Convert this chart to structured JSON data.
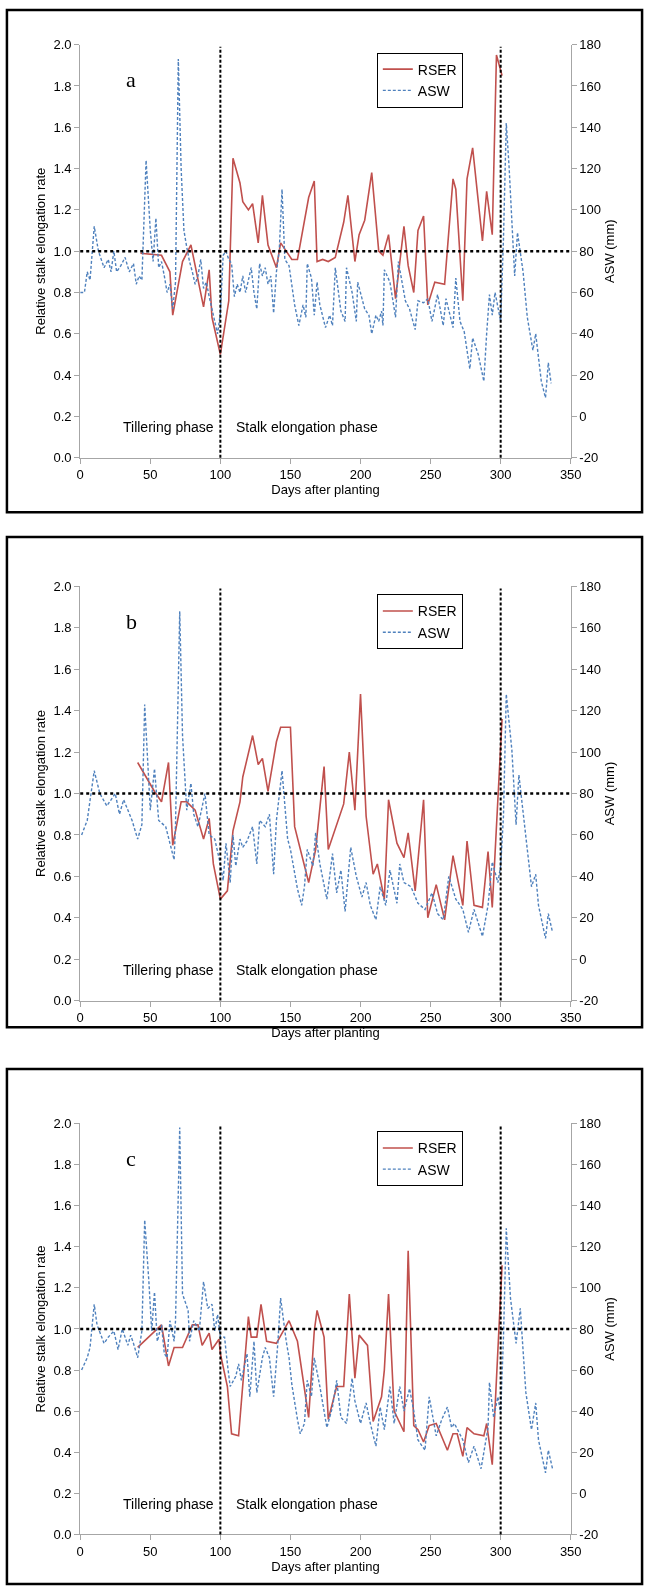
{
  "chart_data": [
    {
      "type": "line",
      "title": "a",
      "xlabel": "Days after planting",
      "ylabel": "Relative stalk elongation rate",
      "y2label": "ASW (mm)",
      "xlim": [
        0,
        350
      ],
      "xticks": [
        0,
        50,
        100,
        150,
        200,
        250,
        300,
        350
      ],
      "ylim": [
        0,
        2
      ],
      "yticks": [
        {
          "value": 0,
          "label": "0.0"
        },
        {
          "value": 0.2,
          "label": "0.2"
        },
        {
          "value": 0.4,
          "label": "0.4"
        },
        {
          "value": 0.6,
          "label": "0.6"
        },
        {
          "value": 0.8,
          "label": "0.8"
        },
        {
          "value": 1,
          "label": "1.0"
        },
        {
          "value": 1.2,
          "label": "1.2"
        },
        {
          "value": 1.4,
          "label": "1.4"
        },
        {
          "value": 1.6,
          "label": "1.6"
        },
        {
          "value": 1.8,
          "label": "1.8"
        },
        {
          "value": 2,
          "label": "2.0"
        }
      ],
      "y2lim": [
        -20,
        180
      ],
      "y2ticks": [
        -20,
        0,
        20,
        40,
        60,
        80,
        100,
        120,
        140,
        160,
        180
      ],
      "legend": "top right",
      "grid": false,
      "marker": "none",
      "ref_lines": [
        {
          "axis": "x",
          "value": 100,
          "color": "#000000",
          "line_style": "dashed"
        },
        {
          "axis": "x",
          "value": 300,
          "color": "#000000",
          "line_style": "dashed"
        },
        {
          "axis": "y",
          "value": 1,
          "color": "#000000",
          "line_style": "dotted"
        }
      ],
      "annotations": [
        "Tillering phase",
        "Stalk elongation phase"
      ],
      "series": [
        {
          "name": "RSER",
          "color": "#c0504d",
          "line_style": "solid",
          "x": [
            43,
            58,
            64,
            66,
            73,
            79,
            88,
            92,
            94,
            100,
            106,
            109,
            114,
            116,
            120,
            123,
            127,
            130,
            134,
            140,
            143,
            151,
            155,
            163,
            167,
            169,
            173,
            177,
            182,
            188,
            191,
            196,
            199,
            203,
            208,
            213,
            216,
            220,
            225,
            231,
            234,
            238,
            241,
            245,
            248,
            253,
            260,
            266,
            268,
            273,
            276,
            280,
            287,
            290,
            294,
            297,
            301
          ],
          "values": [
            0.99,
            0.98,
            0.9,
            0.69,
            0.95,
            1.03,
            0.73,
            0.91,
            0.68,
            0.5,
            0.76,
            1.45,
            1.33,
            1.24,
            1.2,
            1.23,
            1.04,
            1.27,
            1.03,
            0.92,
            1.04,
            0.96,
            0.96,
            1.26,
            1.34,
            0.95,
            0.96,
            0.95,
            0.97,
            1.14,
            1.27,
            0.95,
            1.08,
            1.15,
            1.38,
            1.0,
            0.98,
            1.08,
            0.77,
            1.12,
            0.93,
            0.8,
            1.1,
            1.17,
            0.74,
            0.85,
            0.84,
            1.35,
            1.3,
            0.76,
            1.35,
            1.5,
            1.05,
            1.29,
            1.08,
            1.95,
            1.85
          ]
        },
        {
          "name": "ASW",
          "color": "#4f81bd",
          "line_style": "dashed",
          "axis": "y2",
          "x": [
            0,
            3,
            5,
            7,
            10,
            13,
            17,
            20,
            22,
            24,
            26,
            29,
            32,
            35,
            38,
            40,
            42,
            44,
            47,
            50,
            52,
            54,
            56,
            58,
            60,
            62,
            64,
            66,
            68,
            70,
            72,
            74,
            76,
            78,
            80,
            82,
            84,
            86,
            88,
            90,
            92,
            94,
            96,
            98,
            100,
            102,
            104,
            106,
            108,
            110,
            112,
            114,
            116,
            118,
            120,
            122,
            124,
            126,
            128,
            130,
            132,
            134,
            136,
            138,
            140,
            142,
            144,
            146,
            149,
            153,
            156,
            159,
            161,
            162,
            165,
            167,
            169,
            171,
            175,
            178,
            180,
            182,
            186,
            189,
            190,
            194,
            197,
            198,
            203,
            206,
            208,
            211,
            213,
            215,
            216,
            217,
            221,
            225,
            227,
            232,
            235,
            239,
            241,
            245,
            248,
            251,
            255,
            259,
            261,
            266,
            268,
            271,
            274,
            278,
            280,
            284,
            288,
            290,
            292,
            294,
            296,
            300,
            302,
            304,
            306,
            310,
            312,
            316,
            319,
            323,
            325,
            329,
            332,
            334,
            336
          ],
          "values": [
            60,
            60,
            70,
            66,
            92,
            80,
            72,
            76,
            70,
            80,
            70,
            73,
            77,
            70,
            74,
            64,
            68,
            66,
            124,
            90,
            75,
            96,
            72,
            75,
            68,
            60,
            64,
            52,
            65,
            173,
            120,
            90,
            82,
            75,
            70,
            64,
            68,
            76,
            62,
            65,
            58,
            52,
            46,
            40,
            50,
            78,
            80,
            76,
            74,
            58,
            64,
            60,
            68,
            60,
            66,
            72,
            60,
            52,
            74,
            68,
            72,
            64,
            68,
            50,
            70,
            80,
            110,
            76,
            73,
            54,
            44,
            54,
            48,
            74,
            67,
            49,
            65,
            54,
            43,
            49,
            44,
            72,
            51,
            46,
            72,
            60,
            46,
            65,
            52,
            49,
            40,
            49,
            46,
            51,
            44,
            71,
            65,
            48,
            75,
            56,
            52,
            42,
            56,
            55,
            57,
            46,
            59,
            44,
            57,
            43,
            67,
            46,
            41,
            23,
            38,
            30,
            17,
            40,
            59,
            49,
            60,
            46,
            86,
            142,
            121,
            68,
            89,
            70,
            48,
            32,
            40,
            17,
            9,
            26,
            16
          ]
        }
      ]
    },
    {
      "type": "line",
      "title": "b",
      "xlabel": "Days after planting",
      "ylabel": "Relative stalk elongation rate",
      "y2label": "ASW (mm)",
      "xlim": [
        0,
        350
      ],
      "xticks": [
        0,
        50,
        100,
        150,
        200,
        250,
        300,
        350
      ],
      "ylim": [
        0,
        2
      ],
      "yticks": [
        {
          "value": 0,
          "label": "0.0"
        },
        {
          "value": 0.2,
          "label": "0.2"
        },
        {
          "value": 0.4,
          "label": "0.4"
        },
        {
          "value": 0.6,
          "label": "0.6"
        },
        {
          "value": 0.8,
          "label": "0.8"
        },
        {
          "value": 1,
          "label": "1.0"
        },
        {
          "value": 1.2,
          "label": "1.2"
        },
        {
          "value": 1.4,
          "label": "1.4"
        },
        {
          "value": 1.6,
          "label": "1.6"
        },
        {
          "value": 1.8,
          "label": "1.8"
        },
        {
          "value": 2,
          "label": "2.0"
        }
      ],
      "y2lim": [
        -20,
        180
      ],
      "y2ticks": [
        -20,
        0,
        20,
        40,
        60,
        80,
        100,
        120,
        140,
        160,
        180
      ],
      "legend": "top right",
      "grid": false,
      "marker": "none",
      "ref_lines": [
        {
          "axis": "x",
          "value": 100,
          "color": "#000000",
          "line_style": "dashed"
        },
        {
          "axis": "x",
          "value": 300,
          "color": "#000000",
          "line_style": "dashed"
        },
        {
          "axis": "y",
          "value": 1,
          "color": "#000000",
          "line_style": "dotted"
        }
      ],
      "annotations": [
        "Tillering phase",
        "Stalk elongation phase"
      ],
      "series": [
        {
          "name": "RSER",
          "color": "#c0504d",
          "line_style": "solid",
          "x": [
            41,
            53,
            58,
            63,
            66,
            72,
            76,
            82,
            88,
            92,
            95,
            100,
            105,
            109,
            114,
            116,
            123,
            127,
            130,
            134,
            140,
            143,
            150,
            153,
            163,
            168,
            174,
            177,
            188,
            192,
            196,
            200,
            204,
            209,
            212,
            217,
            220,
            226,
            231,
            234,
            239,
            245,
            248,
            254,
            260,
            266,
            273,
            276,
            281,
            287,
            291,
            294,
            301
          ],
          "values": [
            1.15,
            1.01,
            0.96,
            1.15,
            0.75,
            0.96,
            0.96,
            0.92,
            0.78,
            0.88,
            0.66,
            0.49,
            0.53,
            0.82,
            0.96,
            1.08,
            1.28,
            1.14,
            1.17,
            1.01,
            1.25,
            1.32,
            1.32,
            0.84,
            0.57,
            0.73,
            1.13,
            0.73,
            0.95,
            1.2,
            0.92,
            1.48,
            0.89,
            0.61,
            0.66,
            0.49,
            0.97,
            0.76,
            0.69,
            0.81,
            0.53,
            0.97,
            0.4,
            0.56,
            0.39,
            0.7,
            0.46,
            0.77,
            0.46,
            0.45,
            0.72,
            0.45,
            1.36
          ]
        },
        {
          "name": "ASW",
          "color": "#4f81bd",
          "line_style": "dashed",
          "axis": "y2",
          "x": [
            1,
            5,
            10,
            14,
            19,
            25,
            28,
            31,
            37,
            41,
            44,
            46,
            50,
            53,
            56,
            61,
            64,
            67,
            68,
            71,
            73,
            76,
            79,
            81,
            84,
            89,
            92,
            96,
            100,
            102,
            104,
            107,
            109,
            111,
            114,
            116,
            119,
            123,
            126,
            128,
            132,
            135,
            138,
            140,
            144,
            148,
            150,
            155,
            158,
            160,
            162,
            166,
            168,
            171,
            176,
            180,
            183,
            186,
            189,
            193,
            197,
            201,
            204,
            207,
            211,
            214,
            218,
            221,
            226,
            228,
            231,
            236,
            241,
            246,
            251,
            255,
            259,
            263,
            268,
            273,
            277,
            281,
            287,
            291,
            294,
            298,
            300,
            302,
            304,
            308,
            311,
            313,
            319,
            322,
            325,
            327,
            332,
            334,
            337
          ],
          "values": [
            60,
            67,
            91,
            80,
            74,
            80,
            70,
            77,
            67,
            58,
            65,
            123,
            72,
            92,
            67,
            64,
            56,
            48,
            65,
            168,
            108,
            72,
            85,
            70,
            64,
            80,
            60,
            58,
            46,
            38,
            56,
            37,
            60,
            45,
            58,
            54,
            57,
            64,
            46,
            67,
            64,
            70,
            41,
            67,
            91,
            58,
            53,
            34,
            26,
            35,
            53,
            45,
            61,
            46,
            29,
            51,
            32,
            43,
            23,
            54,
            40,
            30,
            37,
            26,
            19,
            35,
            26,
            43,
            27,
            46,
            37,
            35,
            27,
            24,
            32,
            22,
            19,
            40,
            29,
            24,
            13,
            24,
            11,
            26,
            47,
            37,
            45,
            69,
            128,
            101,
            65,
            89,
            53,
            35,
            41,
            26,
            10,
            22,
            13
          ]
        }
      ]
    },
    {
      "type": "line",
      "title": "c",
      "xlabel": "Days after planting",
      "ylabel": "Relative stalk elongation rate",
      "y2label": "ASW (mm)",
      "xlim": [
        0,
        350
      ],
      "xticks": [
        0,
        50,
        100,
        150,
        200,
        250,
        300,
        350
      ],
      "ylim": [
        0,
        2
      ],
      "yticks": [
        {
          "value": 0,
          "label": "0.0"
        },
        {
          "value": 0.2,
          "label": "0.2"
        },
        {
          "value": 0.4,
          "label": "0.4"
        },
        {
          "value": 0.6,
          "label": "0.6"
        },
        {
          "value": 0.8,
          "label": "0.8"
        },
        {
          "value": 1,
          "label": "1.0"
        },
        {
          "value": 1.2,
          "label": "1.2"
        },
        {
          "value": 1.4,
          "label": "1.4"
        },
        {
          "value": 1.6,
          "label": "1.6"
        },
        {
          "value": 1.8,
          "label": "1.8"
        },
        {
          "value": 2,
          "label": "2.0"
        }
      ],
      "y2lim": [
        -20,
        180
      ],
      "y2ticks": [
        -20,
        0,
        20,
        40,
        60,
        80,
        100,
        120,
        140,
        160,
        180
      ],
      "legend": "top right",
      "grid": false,
      "marker": "none",
      "ref_lines": [
        {
          "axis": "x",
          "value": 100,
          "color": "#000000",
          "line_style": "dashed"
        },
        {
          "axis": "x",
          "value": 300,
          "color": "#000000",
          "line_style": "dashed"
        },
        {
          "axis": "y",
          "value": 1,
          "color": "#000000",
          "line_style": "dotted"
        }
      ],
      "annotations": [
        "Tillering phase",
        "Stalk elongation phase"
      ],
      "series": [
        {
          "name": "RSER",
          "color": "#c0504d",
          "line_style": "solid",
          "x": [
            41,
            58,
            63,
            67,
            73,
            80,
            84,
            87,
            92,
            94,
            99,
            100,
            105,
            108,
            113,
            120,
            122,
            126,
            129,
            133,
            140,
            149,
            155,
            163,
            167,
            169,
            174,
            177,
            183,
            188,
            192,
            196,
            199,
            205,
            209,
            215,
            217,
            220,
            224,
            231,
            234,
            238,
            241,
            245,
            249,
            254,
            262,
            266,
            269,
            273,
            276,
            281,
            288,
            290,
            294,
            301
          ],
          "values": [
            0.91,
            1.02,
            0.82,
            0.91,
            0.91,
            1.02,
            1.02,
            0.92,
            0.98,
            0.9,
            0.95,
            0.88,
            0.72,
            0.49,
            0.48,
            1.06,
            0.96,
            0.96,
            1.12,
            0.94,
            0.93,
            1.04,
            0.94,
            0.57,
            0.99,
            1.09,
            0.96,
            0.56,
            0.72,
            0.72,
            1.17,
            0.76,
            0.97,
            0.92,
            0.55,
            0.67,
            0.8,
            1.17,
            0.6,
            0.5,
            1.38,
            0.53,
            0.51,
            0.45,
            0.53,
            0.54,
            0.41,
            0.49,
            0.49,
            0.38,
            0.52,
            0.49,
            0.48,
            0.54,
            0.34,
            1.31
          ]
        },
        {
          "name": "ASW",
          "color": "#4f81bd",
          "line_style": "dashed",
          "axis": "y2",
          "x": [
            1,
            5,
            7,
            10,
            12,
            17,
            20,
            24,
            27,
            30,
            34,
            36,
            38,
            41,
            44,
            46,
            49,
            51,
            53,
            55,
            58,
            60,
            62,
            64,
            67,
            68,
            71,
            73,
            77,
            78,
            81,
            85,
            88,
            91,
            94,
            96,
            98,
            100,
            103,
            105,
            107,
            111,
            113,
            115,
            119,
            121,
            124,
            126,
            130,
            132,
            135,
            138,
            141,
            143,
            147,
            149,
            151,
            155,
            157,
            160,
            162,
            165,
            167,
            171,
            176,
            180,
            183,
            186,
            190,
            194,
            196,
            200,
            204,
            207,
            211,
            214,
            217,
            221,
            224,
            228,
            231,
            235,
            238,
            241,
            246,
            249,
            254,
            258,
            262,
            265,
            267,
            273,
            277,
            281,
            286,
            291,
            292,
            295,
            298,
            300,
            302,
            304,
            307,
            311,
            314,
            318,
            322,
            325,
            327,
            332,
            334,
            337
          ],
          "values": [
            60,
            66,
            71,
            92,
            82,
            73,
            76,
            79,
            70,
            80,
            72,
            77,
            73,
            66,
            79,
            133,
            103,
            79,
            98,
            74,
            82,
            68,
            66,
            84,
            74,
            84,
            178,
            97,
            89,
            74,
            84,
            79,
            103,
            90,
            92,
            79,
            87,
            76,
            76,
            63,
            52,
            57,
            63,
            55,
            68,
            47,
            74,
            49,
            66,
            71,
            66,
            47,
            73,
            95,
            74,
            66,
            53,
            36,
            29,
            34,
            55,
            47,
            66,
            52,
            32,
            42,
            55,
            37,
            34,
            56,
            45,
            34,
            44,
            34,
            23,
            42,
            31,
            52,
            34,
            52,
            40,
            51,
            40,
            26,
            21,
            47,
            28,
            36,
            42,
            32,
            34,
            26,
            15,
            23,
            12,
            32,
            54,
            37,
            47,
            39,
            76,
            129,
            95,
            73,
            90,
            49,
            31,
            44,
            26,
            10,
            21,
            12
          ]
        }
      ]
    }
  ]
}
